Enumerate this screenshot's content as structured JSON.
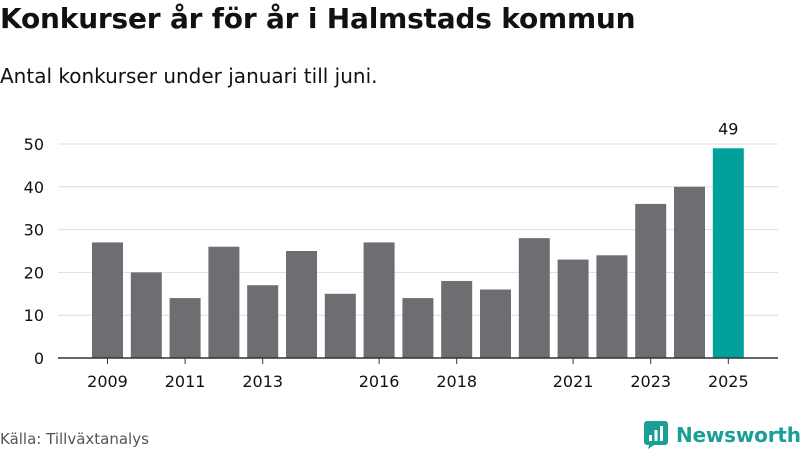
{
  "title": "Konkurser år för år i Halmstads kommun",
  "subtitle": "Antal konkurser under januari till juni.",
  "source": "Källa: Tillväxtanalys",
  "brand": {
    "name": "Newsworthy",
    "icon": "newsworthy-logo-icon",
    "color": "#1a9e96"
  },
  "colors": {
    "bar": "#6e6d72",
    "highlight": "#00a19a",
    "grid": "#dddddd",
    "axis": "#333333"
  },
  "chart_data": {
    "type": "bar",
    "title": "Konkurser år för år i Halmstads kommun",
    "subtitle": "Antal konkurser under januari till juni.",
    "xlabel": "",
    "ylabel": "",
    "categories": [
      "2009",
      "2010",
      "2011",
      "2012",
      "2013",
      "2014",
      "2015",
      "2016",
      "2017",
      "2018",
      "2019",
      "2020",
      "2021",
      "2022",
      "2023",
      "2024",
      "2025"
    ],
    "values": [
      27,
      20,
      14,
      26,
      17,
      25,
      15,
      27,
      14,
      18,
      16,
      28,
      23,
      24,
      36,
      40,
      49
    ],
    "x_tick_labels": [
      "2009",
      "2011",
      "2013",
      "2016",
      "2018",
      "2021",
      "2023",
      "2025"
    ],
    "y_ticks": [
      0,
      10,
      20,
      30,
      40,
      50
    ],
    "ylim": [
      0,
      50
    ],
    "highlight_category": "2025",
    "data_labels": [
      {
        "category": "2025",
        "text": "49"
      }
    ],
    "grid": true,
    "legend": "none"
  }
}
